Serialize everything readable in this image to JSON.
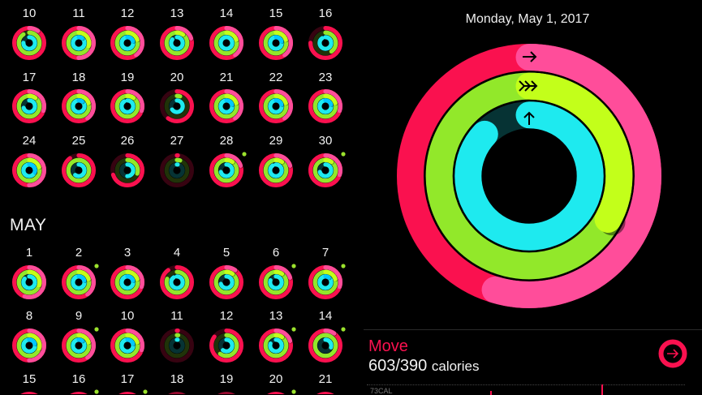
{
  "colors": {
    "move": "#fa114f",
    "move_end": "#ff4d9a",
    "exercise": "#92e82a",
    "exercise_end": "#c3ff1a",
    "stand": "#1eeaef",
    "stand_end": "#00c8ff",
    "badge": "#9be22d"
  },
  "calendar": {
    "weeks_april": [
      [
        {
          "d": "10",
          "r": [
            1.1,
            0.9,
            0.75
          ]
        },
        {
          "d": "11",
          "r": [
            1.5,
            1.3,
            1.1
          ]
        },
        {
          "d": "12",
          "r": [
            1.4,
            1.2,
            1.2
          ]
        },
        {
          "d": "13",
          "r": [
            1.2,
            1.1,
            0.85
          ]
        },
        {
          "d": "14",
          "r": [
            1.4,
            1.2,
            1.0
          ]
        },
        {
          "d": "15",
          "r": [
            1.4,
            1.2,
            1.2
          ]
        },
        {
          "d": "16",
          "r": [
            0.75,
            0.4,
            0.9
          ]
        }
      ],
      [
        {
          "d": "17",
          "r": [
            1.3,
            1.1,
            0.7
          ]
        },
        {
          "d": "18",
          "r": [
            1.4,
            1.2,
            1.1
          ]
        },
        {
          "d": "19",
          "r": [
            1.3,
            1.1,
            0.9
          ]
        },
        {
          "d": "20",
          "r": [
            0.6,
            0.05,
            0.65
          ]
        },
        {
          "d": "21",
          "r": [
            1.4,
            1.2,
            1.2
          ]
        },
        {
          "d": "22",
          "r": [
            1.4,
            1.2,
            1.2
          ]
        },
        {
          "d": "23",
          "r": [
            1.3,
            1.2,
            1.2
          ]
        }
      ],
      [
        {
          "d": "24",
          "r": [
            1.5,
            1.2,
            1.3
          ]
        },
        {
          "d": "25",
          "r": [
            0.9,
            1.0,
            0.6
          ]
        },
        {
          "d": "26",
          "r": [
            0.7,
            0.3,
            0.5
          ]
        },
        {
          "d": "27",
          "r": [
            0.01,
            0.05,
            0.02
          ]
        },
        {
          "d": "28",
          "r": [
            1.2,
            1.1,
            0.7
          ],
          "badge": true
        },
        {
          "d": "29",
          "r": [
            1.2,
            1.1,
            0.9
          ]
        },
        {
          "d": "30",
          "r": [
            1.3,
            1.1,
            0.7
          ],
          "badge": true
        }
      ]
    ],
    "month_label": "MAY",
    "weeks_may": [
      [
        {
          "d": "1",
          "r": [
            1.55,
            1.3,
            0.85
          ]
        },
        {
          "d": "2",
          "r": [
            1.4,
            1.2,
            1.2
          ],
          "badge": true
        },
        {
          "d": "3",
          "r": [
            1.3,
            1.2,
            1.2
          ]
        },
        {
          "d": "4",
          "r": [
            0.9,
            0.8,
            0.9
          ]
        },
        {
          "d": "5",
          "r": [
            1.1,
            1.1,
            0.7
          ]
        },
        {
          "d": "6",
          "r": [
            1.2,
            1.1,
            0.8
          ],
          "badge": true
        },
        {
          "d": "7",
          "r": [
            1.3,
            1.2,
            1.1
          ],
          "badge": true
        }
      ],
      [
        {
          "d": "8",
          "r": [
            1.5,
            1.3,
            1.2
          ]
        },
        {
          "d": "9",
          "r": [
            1.4,
            1.2,
            1.1
          ],
          "badge": true
        },
        {
          "d": "10",
          "r": [
            1.3,
            1.2,
            1.2
          ]
        },
        {
          "d": "11",
          "r": [
            0.01,
            0.02,
            0.02
          ]
        },
        {
          "d": "12",
          "r": [
            0.85,
            0.6,
            0.6
          ]
        },
        {
          "d": "13",
          "r": [
            1.2,
            1.1,
            0.8
          ],
          "badge": true
        },
        {
          "d": "14",
          "r": [
            1.1,
            1.0,
            0.3
          ],
          "badge": true
        }
      ],
      [
        {
          "d": "15",
          "r": [
            1.4,
            1.0,
            1.0
          ]
        },
        {
          "d": "16",
          "r": [
            1.4,
            1.0,
            1.0
          ],
          "badge": true
        },
        {
          "d": "17",
          "r": [
            1.4,
            1.0,
            1.0
          ],
          "badge": true
        },
        {
          "d": "18",
          "r": [
            0.4,
            0.4,
            0.4
          ]
        },
        {
          "d": "19",
          "r": [
            0.4,
            0.4,
            0.4
          ]
        },
        {
          "d": "20",
          "r": [
            1.2,
            1.0,
            1.0
          ],
          "badge": true
        },
        {
          "d": "21",
          "r": [
            0.5,
            0.5,
            0.5
          ]
        }
      ]
    ]
  },
  "detail": {
    "date": "Monday, May 1, 2017",
    "rings": {
      "move": 1.546,
      "exercise": 1.33,
      "stand": 0.87
    },
    "ring_icons": [
      "arrow-right-icon",
      "double-chevron-right-icon",
      "arrow-up-icon"
    ],
    "move_label": "Move",
    "move_value": "603/390",
    "move_unit": "calories",
    "chart_label": "73CAL"
  }
}
